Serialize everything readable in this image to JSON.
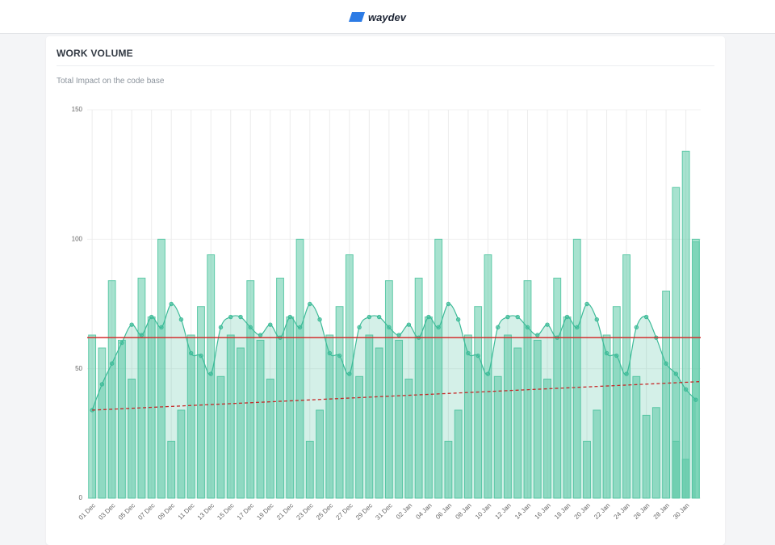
{
  "header": {
    "logo": "waydev"
  },
  "chart_data": {
    "type": "bar",
    "title": "WORK VOLUME",
    "subtitle": "Total Impact on the code base",
    "categories": [
      "01 Dec",
      "02 Dec",
      "03 Dec",
      "04 Dec",
      "05 Dec",
      "06 Dec",
      "07 Dec",
      "08 Dec",
      "09 Dec",
      "10 Dec",
      "11 Dec",
      "12 Dec",
      "13 Dec",
      "14 Dec",
      "15 Dec",
      "16 Dec",
      "17 Dec",
      "18 Dec",
      "19 Dec",
      "20 Dec",
      "21 Dec",
      "22 Dec",
      "23 Dec",
      "24 Dec",
      "25 Dec",
      "26 Dec",
      "27 Dec",
      "28 Dec",
      "29 Dec",
      "30 Dec",
      "31 Dec",
      "01 Jan",
      "02 Jan",
      "03 Jan",
      "04 Jan",
      "05 Jan",
      "06 Jan",
      "07 Jan",
      "08 Jan",
      "09 Jan",
      "10 Jan",
      "11 Jan",
      "12 Jan",
      "13 Jan",
      "14 Jan",
      "15 Jan",
      "16 Jan",
      "17 Jan",
      "18 Jan",
      "19 Jan",
      "20 Jan",
      "21 Jan",
      "22 Jan",
      "23 Jan",
      "24 Jan",
      "25 Jan",
      "26 Jan",
      "27 Jan",
      "28 Jan",
      "29 Jan",
      "30 Jan",
      "31 Jan"
    ],
    "series": [
      {
        "type": "bar",
        "color": "#5fcaa8",
        "values": [
          63,
          58,
          84,
          61,
          46,
          85,
          70,
          100,
          22,
          34,
          63,
          74,
          94,
          47,
          63,
          58,
          84,
          61,
          46,
          85,
          70,
          100,
          22,
          34,
          63,
          74,
          94,
          47,
          63,
          58,
          84,
          61,
          46,
          85,
          70,
          100,
          22,
          34,
          63,
          74,
          94,
          47,
          63,
          58,
          84,
          61,
          46,
          85,
          70,
          100,
          22,
          34,
          63,
          74,
          94,
          47,
          32,
          35,
          80,
          22,
          15,
          99
        ]
      },
      {
        "type": "line",
        "color": "#3dbb98",
        "values": [
          34,
          44,
          52,
          60,
          67,
          63,
          70,
          66,
          75,
          69,
          56,
          55,
          48,
          66,
          70,
          70,
          66,
          63,
          67,
          62,
          70,
          66,
          75,
          69,
          56,
          55,
          48,
          66,
          70,
          70,
          66,
          63,
          67,
          62,
          70,
          66,
          75,
          69,
          56,
          55,
          48,
          66,
          70,
          70,
          66,
          63,
          67,
          62,
          70,
          66,
          75,
          69,
          56,
          55,
          48,
          66,
          70,
          62,
          52,
          48,
          42,
          38
        ]
      }
    ],
    "extra_bars": [
      120,
      134,
      100
    ],
    "average": 62,
    "average_color": "#d32f2f",
    "trend": [
      34,
      45
    ],
    "trend_color": "#c62828",
    "ylim": [
      0,
      150
    ],
    "yticks": [
      0,
      50,
      100,
      150
    ],
    "grid": true
  }
}
